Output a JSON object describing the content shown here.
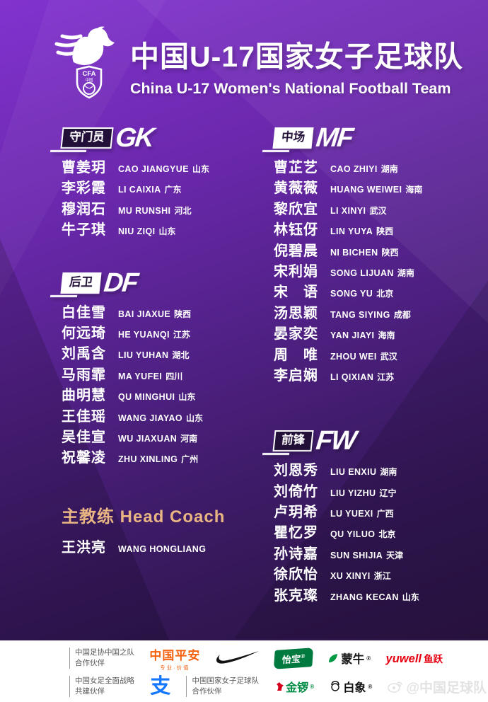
{
  "header": {
    "title_cn": "中国U-17国家女子足球队",
    "title_en": "China U-17 Women's National Football Team",
    "logo": {
      "shield_top": "CFA",
      "shield_cn": "中国"
    }
  },
  "sections": [
    {
      "id": "gk",
      "label_cn": "守门员",
      "label_en": "GK",
      "players": [
        {
          "name": "曹姜玥",
          "pinyin": "CAO JIANGYUE",
          "province": "山东"
        },
        {
          "name": "李彩霞",
          "pinyin": "LI CAIXIA",
          "province": "广东"
        },
        {
          "name": "穆润石",
          "pinyin": "MU RUNSHI",
          "province": "河北"
        },
        {
          "name": "牛子琪",
          "pinyin": "NIU ZIQI",
          "province": "山东"
        }
      ]
    },
    {
      "id": "df",
      "label_cn": "后卫",
      "label_en": "DF",
      "players": [
        {
          "name": "白佳雪",
          "pinyin": "BAI JIAXUE",
          "province": "陕西"
        },
        {
          "name": "何远琦",
          "pinyin": "HE YUANQI",
          "province": "江苏"
        },
        {
          "name": "刘禹含",
          "pinyin": "LIU YUHAN",
          "province": "湖北"
        },
        {
          "name": "马雨霏",
          "pinyin": "MA YUFEI",
          "province": "四川"
        },
        {
          "name": "曲明慧",
          "pinyin": "QU MINGHUI",
          "province": "山东"
        },
        {
          "name": "王佳瑶",
          "pinyin": "WANG JIAYAO",
          "province": "山东"
        },
        {
          "name": "吴佳宣",
          "pinyin": "WU JIAXUAN",
          "province": "河南"
        },
        {
          "name": "祝馨凌",
          "pinyin": "ZHU XINLING",
          "province": "广州"
        }
      ]
    },
    {
      "id": "mf",
      "label_cn": "中场",
      "label_en": "MF",
      "players": [
        {
          "name": "曹芷艺",
          "pinyin": "CAO ZHIYI",
          "province": "湖南"
        },
        {
          "name": "黄薇薇",
          "pinyin": "HUANG WEIWEI",
          "province": "海南"
        },
        {
          "name": "黎欣宜",
          "pinyin": "LI XINYI",
          "province": "武汉"
        },
        {
          "name": "林钰伢",
          "pinyin": "LIN YUYA",
          "province": "陕西"
        },
        {
          "name": "倪碧晨",
          "pinyin": "NI BICHEN",
          "province": "陕西"
        },
        {
          "name": "宋利娟",
          "pinyin": "SONG LIJUAN",
          "province": "湖南"
        },
        {
          "name": "宋　语",
          "pinyin": "SONG YU",
          "province": "北京"
        },
        {
          "name": "汤思颖",
          "pinyin": "TANG SIYING",
          "province": "成都"
        },
        {
          "name": "晏家奕",
          "pinyin": "YAN JIAYI",
          "province": "海南"
        },
        {
          "name": "周　唯",
          "pinyin": "ZHOU WEI",
          "province": "武汉"
        },
        {
          "name": "李启娴",
          "pinyin": "LI QIXIAN",
          "province": "江苏"
        }
      ]
    },
    {
      "id": "fw",
      "label_cn": "前锋",
      "label_en": "FW",
      "players": [
        {
          "name": "刘恩秀",
          "pinyin": "LIU ENXIU",
          "province": "湖南"
        },
        {
          "name": "刘倚竹",
          "pinyin": "LIU YIZHU",
          "province": "辽宁"
        },
        {
          "name": "卢玥希",
          "pinyin": "LU YUEXI",
          "province": "广西"
        },
        {
          "name": "瞿忆罗",
          "pinyin": "QU YILUO",
          "province": "北京"
        },
        {
          "name": "孙诗嘉",
          "pinyin": "SUN SHIJIA",
          "province": "天津"
        },
        {
          "name": "徐欣怡",
          "pinyin": "XU XINYI",
          "province": "浙江"
        },
        {
          "name": "张克璨",
          "pinyin": "ZHANG KECAN",
          "province": "山东"
        }
      ]
    }
  ],
  "coach": {
    "title_cn": "主教练",
    "title_en": "Head Coach",
    "name": "王洪亮",
    "pinyin": "WANG HONGLIANG"
  },
  "footer": {
    "row1": {
      "partner1_line1": "中国足协中国之队",
      "partner1_line2": "合作伙伴",
      "pingan_text": "中国平安",
      "pingan_sub": "专业·价值",
      "cestbon_text": "怡宝",
      "mengniu_text": "蒙牛",
      "yuwell_text": "yuwell",
      "yuwell_cn": "鱼跃"
    },
    "row2": {
      "partner2_line1": "中国女足全面战略",
      "partner2_line2": "共建伙伴",
      "alipay_text": "支",
      "partner3_line1": "中国国家女子足球队",
      "partner3_line2": "合作伙伴",
      "jinluo_text": "金锣",
      "baixiang_text": "白象",
      "weibo_text": "@中国足球队"
    }
  },
  "colors": {
    "bg_top_purple": "#8233cf",
    "bg_bottom_purple": "#2a123f",
    "badge_dark_fill": "#221038",
    "coach_gold": "#e8b583",
    "footer_bg": "#ffffff",
    "pingan_orange": "#f4610f",
    "nike_black": "#111111",
    "cestbon_green": "#007a3e",
    "mengniu_green": "#009944",
    "yuwell_red": "#e60012",
    "alipay_blue": "#1677ff",
    "jinluo_green": "#008c44",
    "jinluo_red": "#d6001c",
    "watermark_gray": "#e2e2e2"
  }
}
